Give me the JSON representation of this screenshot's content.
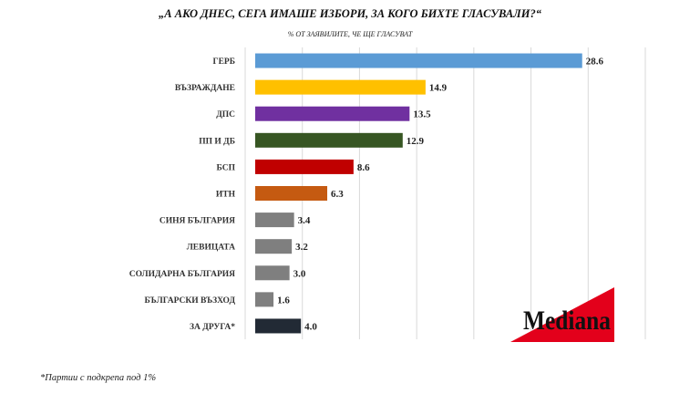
{
  "title": "„А АКО ДНЕС, СЕГА ИМАШЕ ИЗБОРИ, ЗА КОГО БИХТЕ ГЛАСУВАЛИ?“",
  "subtitle": "% ОТ ЗАЯВИЛИТЕ, ЧЕ ЩЕ ГЛАСУВАТ",
  "footnote": "*Партии с подкрепа под 1%",
  "logo": {
    "text": "Mediana",
    "colors": {
      "triangle": "#e3001b",
      "text": "#111111"
    }
  },
  "chart_data": {
    "type": "bar",
    "orientation": "horizontal",
    "categories": [
      "ГЕРБ",
      "ВЪЗРАЖДАНЕ",
      "ДПС",
      "ПП И ДБ",
      "БСП",
      "ИТН",
      "СИНЯ БЪЛГАРИЯ",
      "ЛЕВИЦАТА",
      "СОЛИДАРНА БЪЛГАРИЯ",
      "БЪЛГАРСКИ ВЪЗХОД",
      "ЗА ДРУГА*"
    ],
    "values": [
      28.6,
      14.9,
      13.5,
      12.9,
      8.6,
      6.3,
      3.4,
      3.2,
      3.0,
      1.6,
      4.0
    ],
    "value_labels": [
      "28.6",
      "14.9",
      "13.5",
      "12.9",
      "8.6",
      "6.3",
      "3.4",
      "3.2",
      "3.0",
      "1.6",
      "4.0"
    ],
    "colors": [
      "#5b9bd5",
      "#ffc000",
      "#7030a0",
      "#375623",
      "#c00000",
      "#c55a11",
      "#7f7f7f",
      "#7f7f7f",
      "#7f7f7f",
      "#7f7f7f",
      "#222a35"
    ],
    "xlim": [
      0,
      35
    ],
    "grid": true,
    "legend": "none"
  }
}
